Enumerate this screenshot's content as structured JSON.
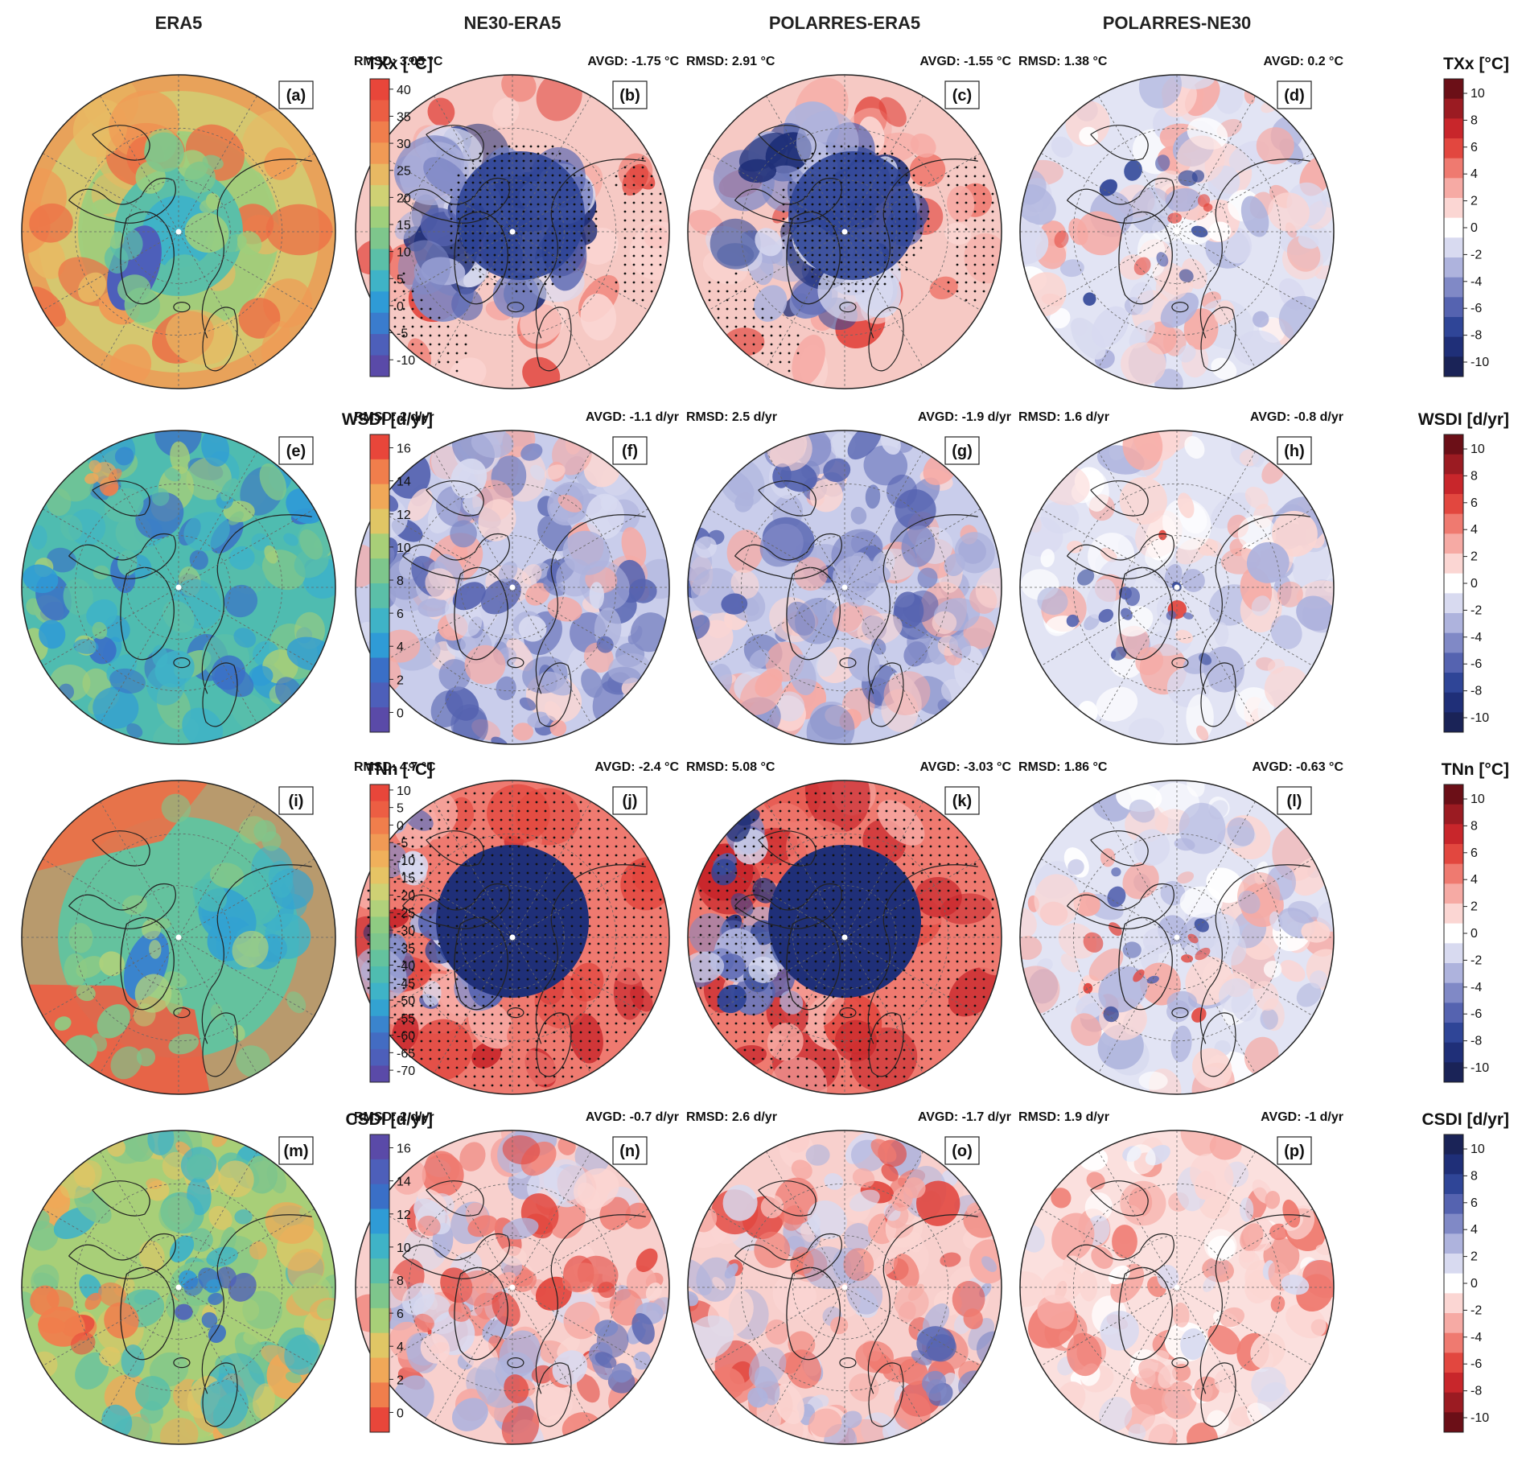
{
  "column_headers": [
    "ERA5",
    "NE30-ERA5",
    "POLARRES-ERA5",
    "POLARRES-NE30"
  ],
  "rows": [
    {
      "index": "TXx",
      "cb_left": {
        "title": "TXx [°C]",
        "ticks": [
          "40",
          "35",
          "30",
          "25",
          "20",
          "15",
          "10",
          "5",
          "0",
          "-5",
          "-10"
        ],
        "colors": [
          "#e8463a",
          "#ec5e43",
          "#f07e4c",
          "#f09a55",
          "#e8b963",
          "#cfd174",
          "#9fcf7c",
          "#7ec68c",
          "#5bbfa8",
          "#3fb3c7",
          "#2f9bd6",
          "#3a7ccd",
          "#4d5fba",
          "#5a4aa8"
        ]
      },
      "cb_right": {
        "title": "TXx [°C]",
        "ticks": [
          "10",
          "8",
          "6",
          "4",
          "2",
          "0",
          "-2",
          "-4",
          "-6",
          "-8",
          "-10"
        ],
        "scheme": "redblue"
      },
      "panels": [
        {
          "label": "(a)",
          "theme": "era_txx"
        },
        {
          "label": "(b)",
          "theme": "diff_cold",
          "stats": {
            "rmsd": "RMSD: 3.05 °C",
            "avgd": "AVGD: -1.75 °C"
          }
        },
        {
          "label": "(c)",
          "theme": "diff_cold",
          "stats": {
            "rmsd": "RMSD: 2.91 °C",
            "avgd": "AVGD: -1.55 °C"
          }
        },
        {
          "label": "(d)",
          "theme": "diff_light",
          "stats": {
            "rmsd": "RMSD: 1.38 °C",
            "avgd": "AVGD: 0.2 °C"
          }
        }
      ]
    },
    {
      "index": "WSDI",
      "cb_left": {
        "title": "WSDI [d/yr]",
        "ticks": [
          "16",
          "14",
          "12",
          "10",
          "8",
          "6",
          "4",
          "2",
          "0"
        ],
        "colors": [
          "#e8463a",
          "#f07e4c",
          "#f0a858",
          "#e0c665",
          "#a8cf78",
          "#7ec68c",
          "#5bbfa8",
          "#3fb3c7",
          "#2f9bd6",
          "#3a6fc7",
          "#4d5fba",
          "#5a4aa8"
        ]
      },
      "cb_right": {
        "title": "WSDI [d/yr]",
        "ticks": [
          "10",
          "8",
          "6",
          "4",
          "2",
          "0",
          "-2",
          "-4",
          "-6",
          "-8",
          "-10"
        ],
        "scheme": "redblue"
      },
      "panels": [
        {
          "label": "(e)",
          "theme": "era_wsdi"
        },
        {
          "label": "(f)",
          "theme": "diff_blue_patchy",
          "stats": {
            "rmsd": "RMSD: 2 d/yr",
            "avgd": "AVGD: -1.1 d/yr"
          }
        },
        {
          "label": "(g)",
          "theme": "diff_blue_patchy",
          "stats": {
            "rmsd": "RMSD: 2.5 d/yr",
            "avgd": "AVGD: -1.9 d/yr"
          }
        },
        {
          "label": "(h)",
          "theme": "diff_light",
          "stats": {
            "rmsd": "RMSD: 1.6 d/yr",
            "avgd": "AVGD: -0.8 d/yr"
          }
        }
      ]
    },
    {
      "index": "TNn",
      "cb_left": {
        "title": "TNn [°C]",
        "ticks": [
          "10",
          "5",
          "0",
          "-5",
          "-10",
          "-15",
          "-20",
          "-25",
          "-30",
          "-35",
          "-40",
          "-45",
          "-50",
          "-55",
          "-60",
          "-65",
          "-70"
        ],
        "colors": [
          "#e8463a",
          "#ec5e43",
          "#f07e4c",
          "#f09a55",
          "#f0b05b",
          "#e6c465",
          "#cfd174",
          "#b1d17b",
          "#8fcb82",
          "#7ec68c",
          "#64c29e",
          "#4fbcb0",
          "#3fb3c7",
          "#33a2d1",
          "#3a84cd",
          "#436cc2",
          "#4d5fba",
          "#5a4aa8"
        ]
      },
      "cb_right": {
        "title": "TNn [°C]",
        "ticks": [
          "10",
          "8",
          "6",
          "4",
          "2",
          "0",
          "-2",
          "-4",
          "-6",
          "-8",
          "-10"
        ],
        "scheme": "redblue"
      },
      "panels": [
        {
          "label": "(i)",
          "theme": "era_tnn"
        },
        {
          "label": "(j)",
          "theme": "diff_strong",
          "stats": {
            "rmsd": "RMSD: 4.7 °C",
            "avgd": "AVGD: -2.4 °C"
          }
        },
        {
          "label": "(k)",
          "theme": "diff_strong",
          "stats": {
            "rmsd": "RMSD: 5.08 °C",
            "avgd": "AVGD: -3.03 °C"
          }
        },
        {
          "label": "(l)",
          "theme": "diff_light",
          "stats": {
            "rmsd": "RMSD: 1.86 °C",
            "avgd": "AVGD: -0.63 °C"
          }
        }
      ]
    },
    {
      "index": "CSDI",
      "cb_left": {
        "title": "CSDI [d/yr]",
        "ticks": [
          "16",
          "14",
          "12",
          "10",
          "8",
          "6",
          "4",
          "2",
          "0"
        ],
        "colors": [
          "#5a4aa8",
          "#4d5fba",
          "#3a6fc7",
          "#2f9bd6",
          "#3fb3c7",
          "#5bbfa8",
          "#7ec68c",
          "#a8cf78",
          "#e0c665",
          "#f0a858",
          "#f07e4c",
          "#e8463a"
        ]
      },
      "cb_right": {
        "title": "CSDI [d/yr]",
        "ticks": [
          "10",
          "8",
          "6",
          "4",
          "2",
          "0",
          "-2",
          "-4",
          "-6",
          "-8",
          "-10"
        ],
        "scheme": "bluered"
      },
      "panels": [
        {
          "label": "(m)",
          "theme": "era_csdi"
        },
        {
          "label": "(n)",
          "theme": "diff_red_patchy",
          "stats": {
            "rmsd": "RMSD: 2 d/yr",
            "avgd": "AVGD: -0.7 d/yr"
          }
        },
        {
          "label": "(o)",
          "theme": "diff_red_patchy",
          "stats": {
            "rmsd": "RMSD: 2.6 d/yr",
            "avgd": "AVGD: -1.7 d/yr"
          }
        },
        {
          "label": "(p)",
          "theme": "diff_light_red",
          "stats": {
            "rmsd": "RMSD: 1.9 d/yr",
            "avgd": "AVGD: -1 d/yr"
          }
        }
      ]
    }
  ],
  "diverging_colors": [
    "#6b0f17",
    "#9b1b22",
    "#c8262b",
    "#e2473f",
    "#ef7a70",
    "#f6aaa4",
    "#fbd6d3",
    "#ffffff",
    "#d8daf0",
    "#aeb3dd",
    "#8089c6",
    "#5563b0",
    "#2f4597",
    "#1f2f78",
    "#1a2357"
  ]
}
